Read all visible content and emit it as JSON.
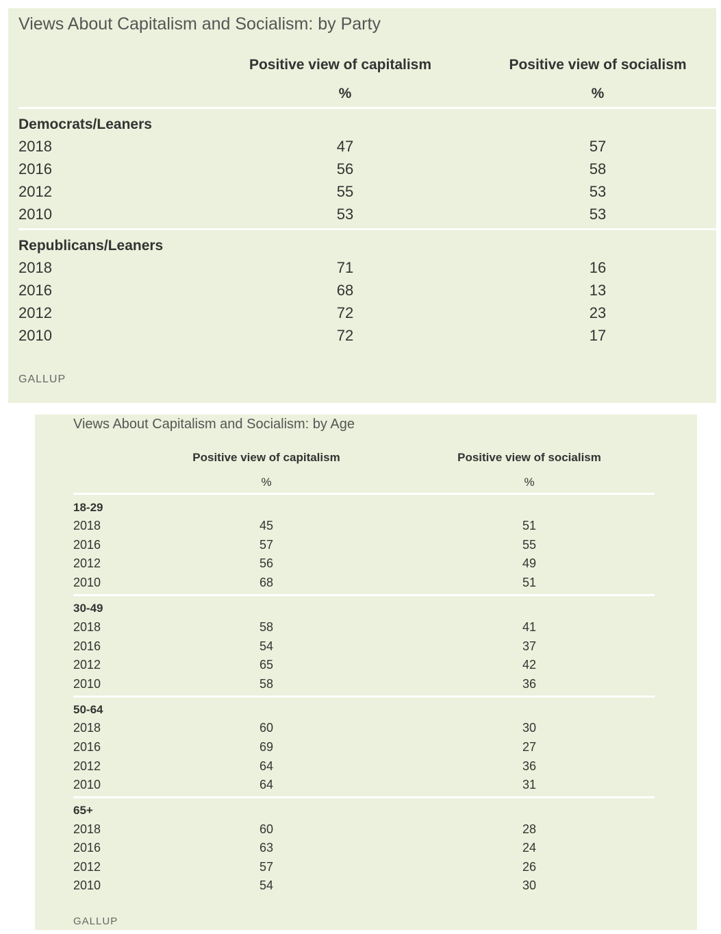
{
  "chart_data": [
    {
      "type": "table",
      "title": "Views About Capitalism and Socialism: by Party",
      "columns": [
        "Positive view of capitalism",
        "Positive view of socialism"
      ],
      "unit": "%",
      "groups": [
        {
          "label": "Democrats/Leaners",
          "rows": [
            {
              "year": "2018",
              "capitalism": 47,
              "socialism": 57
            },
            {
              "year": "2016",
              "capitalism": 56,
              "socialism": 58
            },
            {
              "year": "2012",
              "capitalism": 55,
              "socialism": 53
            },
            {
              "year": "2010",
              "capitalism": 53,
              "socialism": 53
            }
          ]
        },
        {
          "label": "Republicans/Leaners",
          "rows": [
            {
              "year": "2018",
              "capitalism": 71,
              "socialism": 16
            },
            {
              "year": "2016",
              "capitalism": 68,
              "socialism": 13
            },
            {
              "year": "2012",
              "capitalism": 72,
              "socialism": 23
            },
            {
              "year": "2010",
              "capitalism": 72,
              "socialism": 17
            }
          ]
        }
      ],
      "source": "GALLUP"
    },
    {
      "type": "table",
      "title": "Views About Capitalism and Socialism: by Age",
      "columns": [
        "Positive view of capitalism",
        "Positive view of socialism"
      ],
      "unit": "%",
      "groups": [
        {
          "label": "18-29",
          "rows": [
            {
              "year": "2018",
              "capitalism": 45,
              "socialism": 51
            },
            {
              "year": "2016",
              "capitalism": 57,
              "socialism": 55
            },
            {
              "year": "2012",
              "capitalism": 56,
              "socialism": 49
            },
            {
              "year": "2010",
              "capitalism": 68,
              "socialism": 51
            }
          ]
        },
        {
          "label": "30-49",
          "rows": [
            {
              "year": "2018",
              "capitalism": 58,
              "socialism": 41
            },
            {
              "year": "2016",
              "capitalism": 54,
              "socialism": 37
            },
            {
              "year": "2012",
              "capitalism": 65,
              "socialism": 42
            },
            {
              "year": "2010",
              "capitalism": 58,
              "socialism": 36
            }
          ]
        },
        {
          "label": "50-64",
          "rows": [
            {
              "year": "2018",
              "capitalism": 60,
              "socialism": 30
            },
            {
              "year": "2016",
              "capitalism": 69,
              "socialism": 27
            },
            {
              "year": "2012",
              "capitalism": 64,
              "socialism": 36
            },
            {
              "year": "2010",
              "capitalism": 64,
              "socialism": 31
            }
          ]
        },
        {
          "label": "65+",
          "rows": [
            {
              "year": "2018",
              "capitalism": 60,
              "socialism": 28
            },
            {
              "year": "2016",
              "capitalism": 63,
              "socialism": 24
            },
            {
              "year": "2012",
              "capitalism": 57,
              "socialism": 26
            },
            {
              "year": "2010",
              "capitalism": 54,
              "socialism": 30
            }
          ]
        }
      ],
      "source": "GALLUP"
    }
  ],
  "colors": {
    "panel_background": "#ebf1dc",
    "rule": "#ffffff",
    "text": "#333333",
    "title": "#555555"
  }
}
